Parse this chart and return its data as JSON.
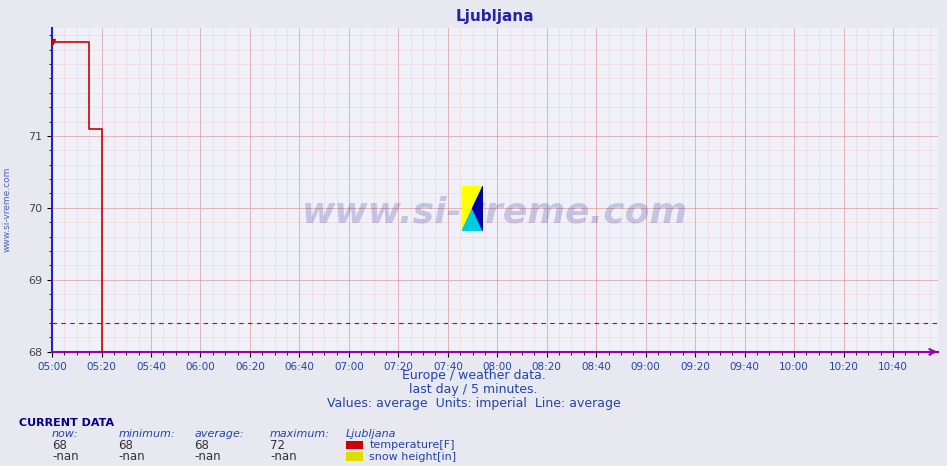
{
  "title": "Ljubljana",
  "title_color": "#2222aa",
  "title_fontsize": 11,
  "bg_color": "#e8e8f0",
  "plot_bg_color": "#f0f0f8",
  "x_tick_labels": [
    "05:00",
    "05:20",
    "05:40",
    "06:00",
    "06:20",
    "06:40",
    "07:00",
    "07:20",
    "07:40",
    "08:00",
    "08:20",
    "08:40",
    "09:00",
    "09:20",
    "09:40",
    "10:00",
    "10:20",
    "10:40"
  ],
  "x_tick_values": [
    300,
    320,
    340,
    360,
    380,
    400,
    420,
    440,
    460,
    480,
    500,
    520,
    540,
    560,
    580,
    600,
    620,
    640
  ],
  "x_min": 300,
  "x_max": 658,
  "y_min": 68,
  "y_max": 72.5,
  "y_ticks": [
    68,
    69,
    70,
    71
  ],
  "y_tick_labels": [
    "68",
    "69",
    "70",
    "71"
  ],
  "temp_line_color": "#cc0000",
  "temp_x": [
    300,
    315,
    315,
    320,
    320,
    325
  ],
  "temp_y": [
    72.3,
    72.3,
    71.1,
    71.1,
    68.0,
    68.0
  ],
  "avg_line_y": 68.4,
  "avg_line_color": "#cc0000",
  "left_border_color": "#2222cc",
  "bottom_border_color": "#9900aa",
  "grid_major_color": "#dd9999",
  "grid_minor_color": "#eebbbb",
  "watermark_text": "www.si-vreme.com",
  "footer_line1": "Europe / weather data.",
  "footer_line2": "last day / 5 minutes.",
  "footer_line3": "Values: average  Units: imperial  Line: average",
  "footer_color": "#2244aa",
  "footer_fontsize": 9,
  "left_label": "www.si-vreme.com",
  "left_label_color": "#2244aa",
  "current_data_label": "CURRENT DATA",
  "col_headers": [
    "now:",
    "minimum:",
    "average:",
    "maximum:",
    "Ljubljana"
  ],
  "row1_vals": [
    "68",
    "68",
    "68",
    "72"
  ],
  "row1_label": "temperature[F]",
  "row1_color": "#cc0000",
  "row2_vals": [
    "-nan",
    "-nan",
    "-nan",
    "-nan"
  ],
  "row2_label": "snow height[in]",
  "row2_color": "#dddd00"
}
